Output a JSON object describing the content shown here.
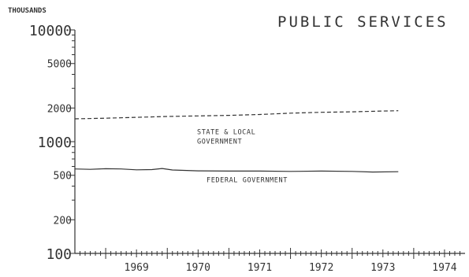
{
  "chart_data": {
    "type": "line",
    "title": "PUBLIC SERVICES",
    "unit_label": "THOUSANDS",
    "y_scale": "log",
    "ylim": [
      100,
      10000
    ],
    "y_ticks": [
      {
        "value": 10000,
        "label": "10000",
        "major": true
      },
      {
        "value": 5000,
        "label": "5000",
        "major": false
      },
      {
        "value": 2000,
        "label": "2000",
        "major": false
      },
      {
        "value": 1000,
        "label": "1000",
        "major": true
      },
      {
        "value": 500,
        "label": "500",
        "major": false
      },
      {
        "value": 200,
        "label": "200",
        "major": false
      },
      {
        "value": 100,
        "label": "100",
        "major": true
      }
    ],
    "x_range": [
      "1968-07",
      "1974-11"
    ],
    "x_labels": [
      "1969",
      "1970",
      "1971",
      "1972",
      "1973",
      "1974"
    ],
    "series": [
      {
        "name": "STATE & LOCAL GOVERNMENT",
        "label_lines": [
          "STATE & LOCAL",
          "GOVERNMENT"
        ],
        "style": "dashed",
        "points": [
          [
            "1968-07",
            1600
          ],
          [
            "1969-01",
            1620
          ],
          [
            "1969-07",
            1650
          ],
          [
            "1970-01",
            1680
          ],
          [
            "1970-07",
            1700
          ],
          [
            "1971-01",
            1720
          ],
          [
            "1971-07",
            1750
          ],
          [
            "1972-01",
            1800
          ],
          [
            "1972-07",
            1830
          ],
          [
            "1973-01",
            1850
          ],
          [
            "1973-07",
            1880
          ],
          [
            "1973-10",
            1890
          ]
        ]
      },
      {
        "name": "FEDERAL GOVERNMENT",
        "label_lines": [
          "FEDERAL GOVERNMENT"
        ],
        "style": "solid",
        "points": [
          [
            "1968-07",
            570
          ],
          [
            "1968-10",
            565
          ],
          [
            "1969-01",
            572
          ],
          [
            "1969-04",
            570
          ],
          [
            "1969-07",
            560
          ],
          [
            "1969-10",
            562
          ],
          [
            "1969-12",
            575
          ],
          [
            "1970-02",
            558
          ],
          [
            "1970-07",
            548
          ],
          [
            "1971-01",
            545
          ],
          [
            "1971-07",
            545
          ],
          [
            "1972-01",
            542
          ],
          [
            "1972-07",
            545
          ],
          [
            "1973-01",
            542
          ],
          [
            "1973-05",
            535
          ],
          [
            "1973-10",
            538
          ]
        ]
      }
    ]
  }
}
